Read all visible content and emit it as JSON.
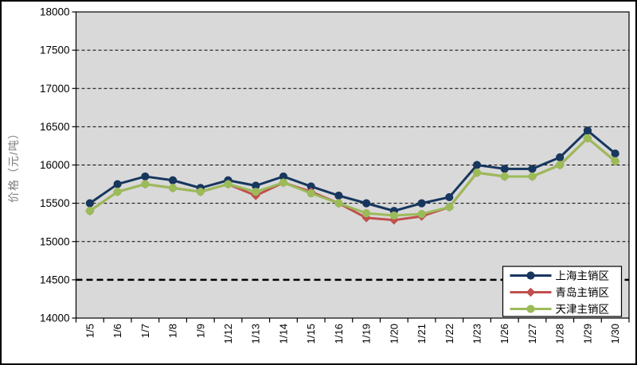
{
  "chart_data": {
    "type": "line",
    "title": "",
    "ylabel": "价格（元/吨）",
    "xlabel": "",
    "ylim": [
      14000,
      18000
    ],
    "ytick_step": 500,
    "yticks": [
      14000,
      14500,
      15000,
      15500,
      16000,
      16500,
      17000,
      17500,
      18000
    ],
    "reference_line": 14500,
    "grid": "dashed",
    "plot_background": "#d9d9d9",
    "axis_color": "#000000",
    "axis_title_color": "#808080",
    "legend_position": "inside-bottom-right",
    "categories": [
      "1/5",
      "1/6",
      "1/7",
      "1/8",
      "1/9",
      "1/12",
      "1/13",
      "1/14",
      "1/15",
      "1/16",
      "1/19",
      "1/20",
      "1/21",
      "1/22",
      "1/23",
      "1/26",
      "1/27",
      "1/28",
      "1/29",
      "1/30"
    ],
    "series": [
      {
        "name": "上海主销区",
        "color": "#17375e",
        "marker": "circle",
        "values": [
          15500,
          15750,
          15850,
          15800,
          15700,
          15800,
          15730,
          15850,
          15720,
          15600,
          15500,
          15400,
          15500,
          15580,
          16000,
          15950,
          15950,
          16100,
          16450,
          16150
        ]
      },
      {
        "name": "青岛主销区",
        "color": "#c0504d",
        "marker": "diamond",
        "values": [
          15400,
          15650,
          15750,
          15700,
          15650,
          15750,
          15600,
          15770,
          15650,
          15500,
          15310,
          15280,
          15330,
          15450,
          15900,
          15850,
          15850,
          16000,
          16350,
          16050
        ]
      },
      {
        "name": "天津主销区",
        "color": "#9bbb59",
        "marker": "circle",
        "values": [
          15400,
          15650,
          15750,
          15700,
          15650,
          15750,
          15650,
          15770,
          15630,
          15500,
          15370,
          15340,
          15360,
          15450,
          15900,
          15850,
          15850,
          16000,
          16350,
          16050
        ]
      }
    ]
  }
}
